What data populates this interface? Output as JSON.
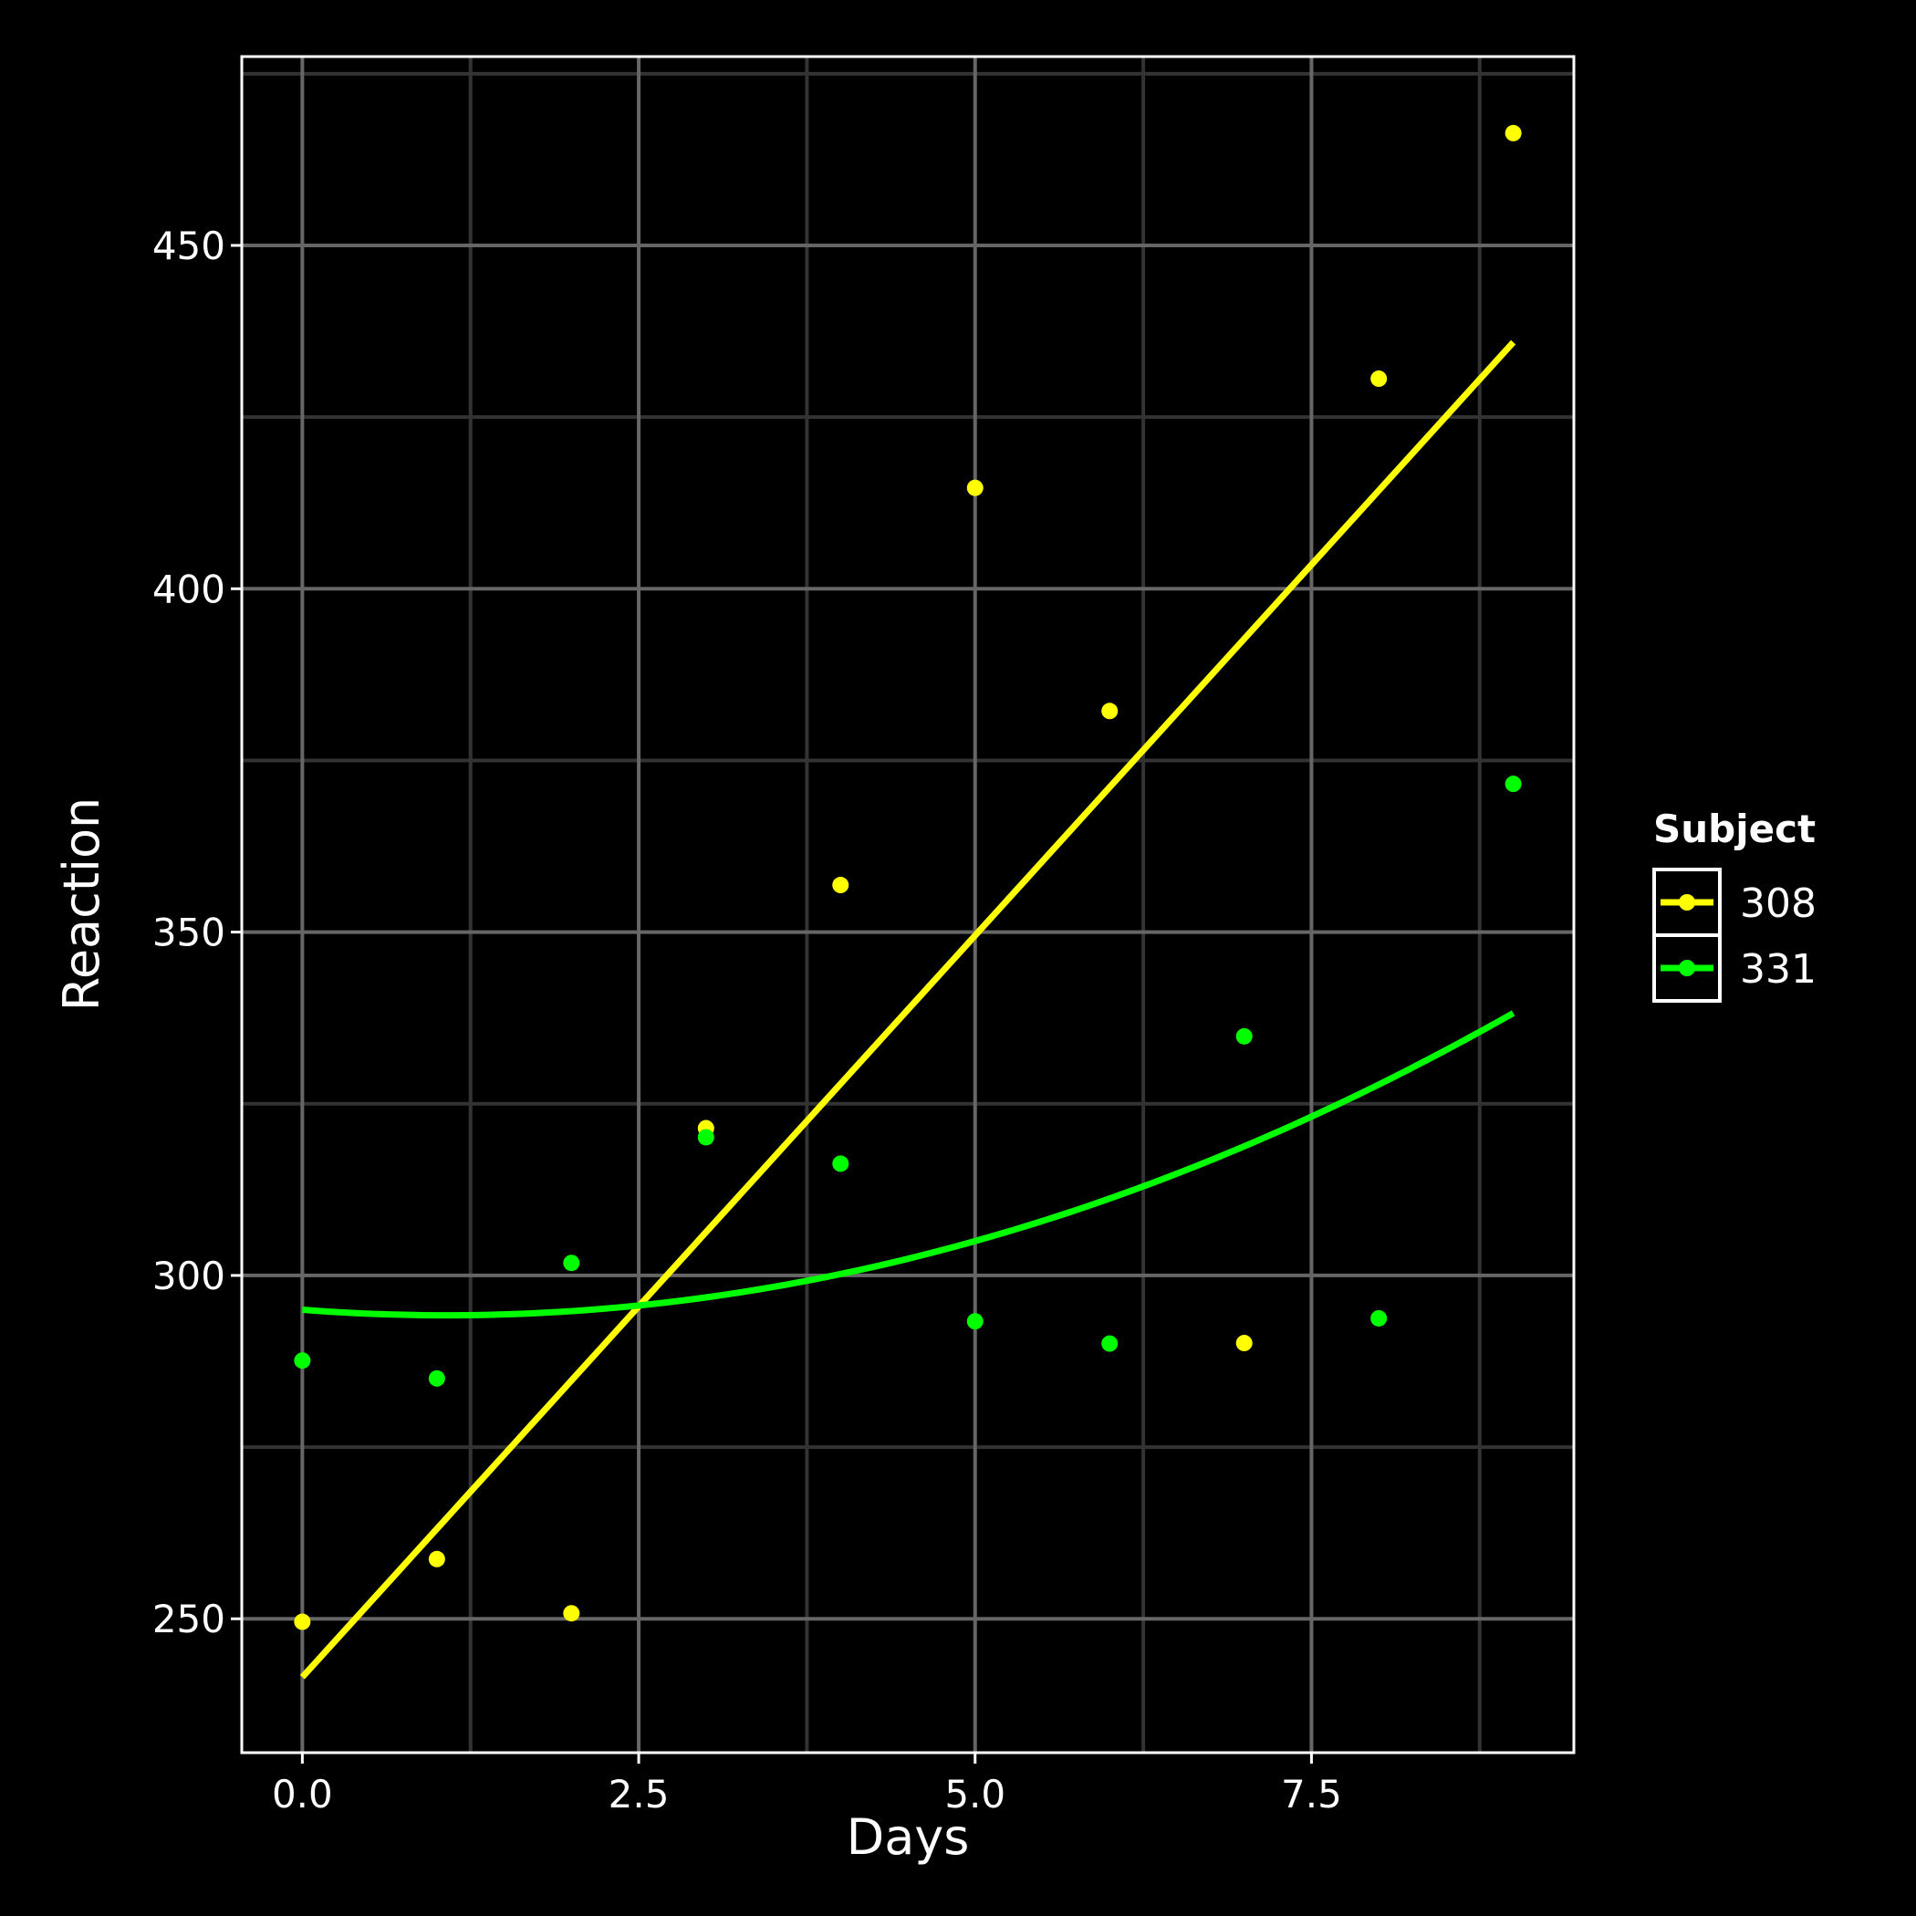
{
  "chart_data": {
    "type": "scatter",
    "xlabel": "Days",
    "ylabel": "Reaction",
    "xlim": [
      -0.45,
      9.45
    ],
    "ylim": [
      230.5,
      477.5
    ],
    "x_ticks": [
      0,
      2.5,
      5,
      7.5
    ],
    "x_tick_labels": [
      "0.0",
      "2.5",
      "5.0",
      "7.5"
    ],
    "y_ticks": [
      250,
      300,
      350,
      400,
      450
    ],
    "y_tick_labels": [
      "250",
      "300",
      "350",
      "400",
      "450"
    ],
    "x_minor_ticks": [
      1.25,
      3.75,
      6.25,
      8.75
    ],
    "y_minor_ticks": [
      275,
      325,
      375,
      425,
      475
    ],
    "grid": true,
    "legend": {
      "title": "Subject",
      "position": "right"
    },
    "series": [
      {
        "name": "308",
        "color": "#ffff00",
        "points": [
          [
            0,
            249.56
          ],
          [
            1,
            258.7
          ],
          [
            2,
            250.8
          ],
          [
            3,
            321.44
          ],
          [
            4,
            356.85
          ],
          [
            5,
            414.69
          ],
          [
            6,
            382.2
          ],
          [
            7,
            290.15
          ],
          [
            8,
            430.59
          ],
          [
            9,
            466.35
          ]
        ],
        "fit": {
          "type": "linear",
          "coefficients": [
            241.5,
            21.6
          ]
        }
      },
      {
        "name": "331",
        "color": "#00ff00",
        "points": [
          [
            0,
            287.6
          ],
          [
            1,
            285.0
          ],
          [
            2,
            301.82
          ],
          [
            3,
            320.12
          ],
          [
            4,
            316.28
          ],
          [
            5,
            293.32
          ],
          [
            6,
            290.08
          ],
          [
            7,
            334.82
          ],
          [
            8,
            293.75
          ],
          [
            9,
            371.58
          ]
        ],
        "fit": {
          "type": "quadratic",
          "coefficients": [
            295.0,
            -1.5,
            0.7
          ]
        }
      }
    ]
  }
}
